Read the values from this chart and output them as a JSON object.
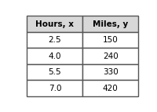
{
  "col1_header": "Hours, x",
  "col2_header": "Miles, y",
  "rows": [
    [
      "2.5",
      "150"
    ],
    [
      "4.0",
      "240"
    ],
    [
      "5.5",
      "330"
    ],
    [
      "7.0",
      "420"
    ]
  ],
  "header_bg": "#d8d8d8",
  "row_bg": "#ffffff",
  "border_color": "#555555",
  "outer_bg": "#ffffff",
  "header_fontsize": 7.5,
  "cell_fontsize": 7.5
}
